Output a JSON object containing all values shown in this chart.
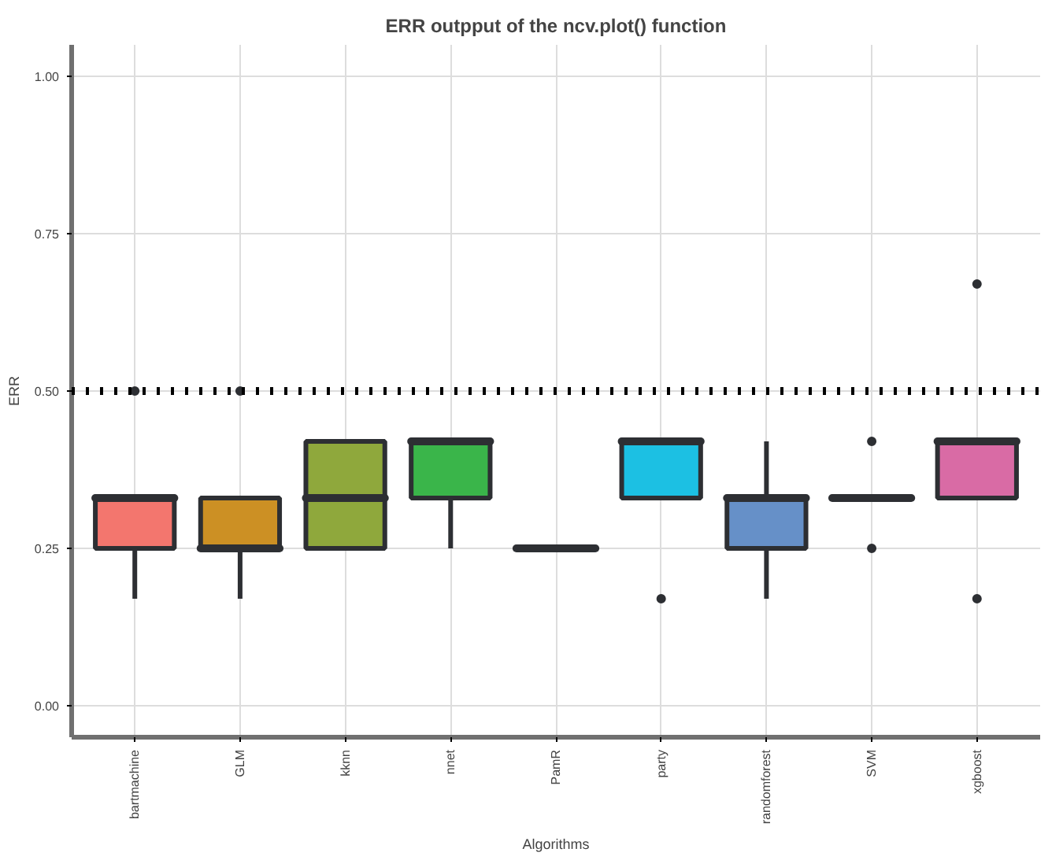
{
  "chart_data": {
    "type": "box",
    "title": "ERR outpput of the ncv.plot() function",
    "xlabel": "Algorithms",
    "ylabel": "ERR",
    "categories": [
      "bartmachine",
      "GLM",
      "kknn",
      "nnet",
      "PamR",
      "party",
      "randomforest",
      "SVM",
      "xgboost"
    ],
    "colors": [
      "#f3766e",
      "#cc9024",
      "#8fa83c",
      "#3ab54a",
      "#2d2f33",
      "#1cc0e3",
      "#6690c8",
      "#2d2f33",
      "#d96ba5"
    ],
    "boxes": [
      {
        "low": 0.17,
        "q1": 0.25,
        "median": 0.33,
        "q3": 0.33,
        "high": 0.33,
        "outliers": [
          0.5
        ]
      },
      {
        "low": 0.17,
        "q1": 0.25,
        "median": 0.25,
        "q3": 0.33,
        "high": 0.33,
        "outliers": [
          0.5
        ]
      },
      {
        "low": 0.25,
        "q1": 0.25,
        "median": 0.33,
        "q3": 0.42,
        "high": 0.42
      },
      {
        "low": 0.25,
        "q1": 0.33,
        "median": 0.42,
        "q3": 0.42,
        "high": 0.42
      },
      {
        "low": 0.25,
        "q1": 0.25,
        "median": 0.25,
        "q3": 0.25,
        "high": 0.25
      },
      {
        "low": 0.33,
        "q1": 0.33,
        "median": 0.42,
        "q3": 0.42,
        "high": 0.42,
        "outliers": [
          0.17
        ]
      },
      {
        "low": 0.17,
        "q1": 0.25,
        "median": 0.33,
        "q3": 0.33,
        "high": 0.42
      },
      {
        "low": 0.33,
        "q1": 0.33,
        "median": 0.33,
        "q3": 0.33,
        "high": 0.33,
        "outliers": [
          0.25,
          0.42
        ]
      },
      {
        "low": 0.33,
        "q1": 0.33,
        "median": 0.42,
        "q3": 0.42,
        "high": 0.42,
        "outliers": [
          0.17,
          0.67
        ]
      }
    ],
    "ylim": [
      -0.05,
      1.05
    ],
    "yticks": [
      {
        "value": 0,
        "label": "0.00"
      },
      {
        "value": 0.25,
        "label": "0.25"
      },
      {
        "value": 0.5,
        "label": "0.50"
      },
      {
        "value": 0.75,
        "label": "0.75"
      },
      {
        "value": 1,
        "label": "1.00"
      }
    ],
    "ref_lines": [
      {
        "axis": "y",
        "value": 0.5,
        "color": "#000000",
        "line_style": "dotted"
      }
    ],
    "grid": true
  }
}
